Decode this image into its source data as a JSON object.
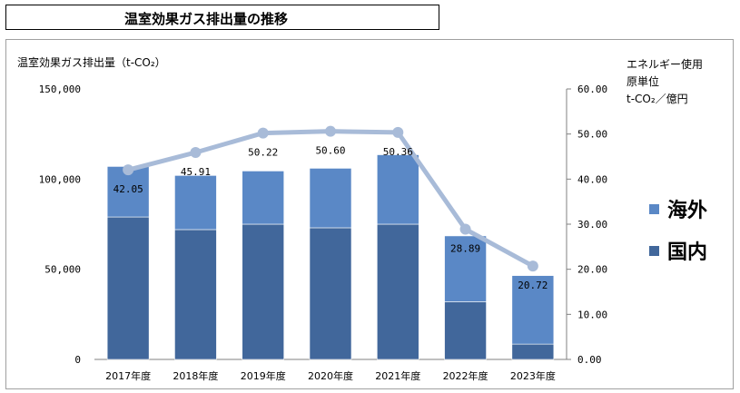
{
  "header": {
    "title": "温室効果ガス排出量の推移"
  },
  "left_axis_title": "温室効果ガス排出量（t-CO₂）",
  "right_axis_title": [
    "エネルギー使用",
    "原単位",
    "t-CO₂／億円"
  ],
  "chart_data": {
    "type": "bar",
    "stacked": true,
    "categories": [
      "2017年度",
      "2018年度",
      "2019年度",
      "2020年度",
      "2021年度",
      "2022年度",
      "2023年度"
    ],
    "series": [
      {
        "name": "国内",
        "color": "#41679b",
        "values": [
          79000,
          72000,
          75000,
          73000,
          75000,
          32000,
          8500
        ]
      },
      {
        "name": "海外",
        "color": "#5a88c6",
        "values": [
          28000,
          30000,
          29500,
          33000,
          38500,
          36500,
          38000
        ]
      }
    ],
    "line": {
      "color": "#a8bbd8",
      "axis": "right",
      "values": [
        42.05,
        45.91,
        50.22,
        50.6,
        50.36,
        28.89,
        20.72
      ],
      "labels": [
        "42.05",
        "45.91",
        "50.22",
        "50.60",
        "50.36",
        "28.89",
        "20.72"
      ]
    },
    "y_left": {
      "min": 0,
      "max": 150000,
      "ticks": [
        "0",
        "50,000",
        "100,000",
        "150,000"
      ]
    },
    "y_right": {
      "min": 0,
      "max": 60,
      "ticks": [
        "0.00",
        "10.00",
        "20.00",
        "30.00",
        "40.00",
        "50.00",
        "60.00"
      ]
    },
    "legend": {
      "position": "right",
      "items": [
        "海外",
        "国内"
      ]
    }
  }
}
